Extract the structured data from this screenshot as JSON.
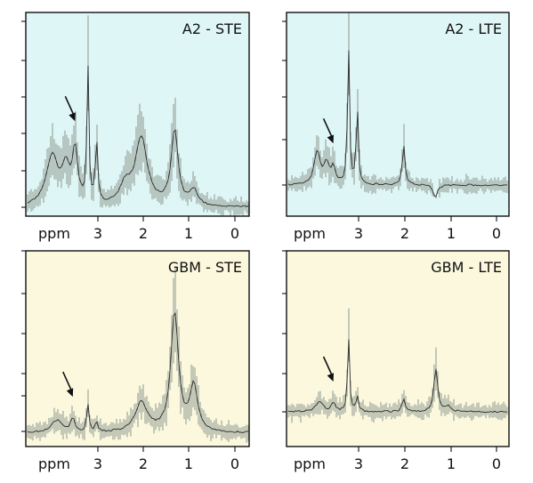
{
  "colors": {
    "a2_background": "#dff6f7",
    "gbm_background": "#fbf8de",
    "variability_band": "#8a958a",
    "mean_spectrum": "#2b2b2b",
    "frame": "#111111"
  },
  "chart_data": [
    {
      "type": "line",
      "title": "A2 - STE",
      "xlabel": "ppm",
      "ylabel": "",
      "x_ticks": [
        "3",
        "2",
        "1",
        "0"
      ],
      "x_reversed": true,
      "xlim": [
        4.3,
        -0.3
      ],
      "ylim": [
        -0.05,
        1.0
      ],
      "grid": false,
      "arrow_at_ppm": 3.5,
      "peaks": [
        {
          "ppm": 3.22,
          "height": 0.74,
          "width": 0.025
        },
        {
          "ppm": 3.03,
          "height": 0.34,
          "width": 0.03
        },
        {
          "ppm": 3.5,
          "height": 0.28,
          "width": 0.07
        },
        {
          "ppm": 3.7,
          "height": 0.18,
          "width": 0.1
        },
        {
          "ppm": 4.0,
          "height": 0.26,
          "width": 0.16
        },
        {
          "ppm": 2.05,
          "height": 0.36,
          "width": 0.16
        },
        {
          "ppm": 2.4,
          "height": 0.1,
          "width": 0.14
        },
        {
          "ppm": 1.32,
          "height": 0.4,
          "width": 0.09
        },
        {
          "ppm": 0.9,
          "height": 0.08,
          "width": 0.1
        }
      ]
    },
    {
      "type": "line",
      "title": "A2 - LTE",
      "xlabel": "ppm",
      "ylabel": "",
      "x_ticks": [
        "3",
        "2",
        "1",
        "0"
      ],
      "x_reversed": true,
      "xlim": [
        4.3,
        -0.3
      ],
      "ylim": [
        -0.25,
        1.0
      ],
      "grid": false,
      "arrow_at_ppm": 3.55,
      "peaks": [
        {
          "ppm": 3.22,
          "height": 0.86,
          "width": 0.025
        },
        {
          "ppm": 3.03,
          "height": 0.5,
          "width": 0.025
        },
        {
          "ppm": 3.55,
          "height": 0.1,
          "width": 0.06
        },
        {
          "ppm": 3.9,
          "height": 0.2,
          "width": 0.08
        },
        {
          "ppm": 3.7,
          "height": 0.12,
          "width": 0.06
        },
        {
          "ppm": 2.02,
          "height": 0.24,
          "width": 0.035
        },
        {
          "ppm": 1.33,
          "height": -0.08,
          "width": 0.05
        }
      ]
    },
    {
      "type": "line",
      "title": "GBM - STE",
      "xlabel": "ppm",
      "ylabel": "",
      "x_ticks": [
        "3",
        "2",
        "1",
        "0"
      ],
      "x_reversed": true,
      "xlim": [
        4.3,
        -0.3
      ],
      "ylim": [
        -0.02,
        1.0
      ],
      "grid": false,
      "arrow_at_ppm": 3.55,
      "peaks": [
        {
          "ppm": 3.22,
          "height": 0.16,
          "width": 0.03
        },
        {
          "ppm": 3.03,
          "height": 0.06,
          "width": 0.03
        },
        {
          "ppm": 3.55,
          "height": 0.08,
          "width": 0.05
        },
        {
          "ppm": 3.9,
          "height": 0.07,
          "width": 0.15
        },
        {
          "ppm": 2.05,
          "height": 0.17,
          "width": 0.16
        },
        {
          "ppm": 1.32,
          "height": 0.68,
          "width": 0.1
        },
        {
          "ppm": 0.9,
          "height": 0.26,
          "width": 0.1
        }
      ]
    },
    {
      "type": "line",
      "title": "GBM - LTE",
      "xlabel": "ppm",
      "ylabel": "",
      "x_ticks": [
        "3",
        "2",
        "1",
        "0"
      ],
      "x_reversed": true,
      "xlim": [
        4.3,
        -0.3
      ],
      "ylim": [
        -0.1,
        1.0
      ],
      "grid": false,
      "arrow_at_ppm": 3.55,
      "peaks": [
        {
          "ppm": 3.22,
          "height": 0.5,
          "width": 0.025
        },
        {
          "ppm": 3.03,
          "height": 0.12,
          "width": 0.025
        },
        {
          "ppm": 3.55,
          "height": 0.06,
          "width": 0.05
        },
        {
          "ppm": 3.85,
          "height": 0.06,
          "width": 0.1
        },
        {
          "ppm": 2.02,
          "height": 0.08,
          "width": 0.04
        },
        {
          "ppm": 1.32,
          "height": 0.28,
          "width": 0.05
        },
        {
          "ppm": 1.05,
          "height": 0.04,
          "width": 0.06
        }
      ]
    }
  ]
}
